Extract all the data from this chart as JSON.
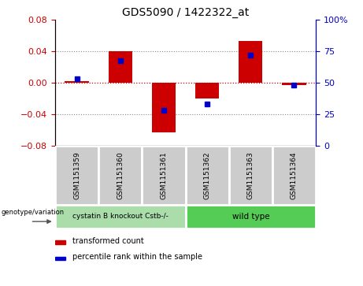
{
  "title": "GDS5090 / 1422322_at",
  "samples": [
    "GSM1151359",
    "GSM1151360",
    "GSM1151361",
    "GSM1151362",
    "GSM1151363",
    "GSM1151364"
  ],
  "red_values": [
    0.002,
    0.04,
    -0.063,
    -0.02,
    0.053,
    -0.003
  ],
  "blue_values": [
    53,
    68,
    28,
    33,
    72,
    48
  ],
  "ylim_left": [
    -0.08,
    0.08
  ],
  "ylim_right": [
    0,
    100
  ],
  "yticks_left": [
    -0.08,
    -0.04,
    0.0,
    0.04,
    0.08
  ],
  "yticks_right": [
    0,
    25,
    50,
    75,
    100
  ],
  "bar_color": "#cc0000",
  "dot_color": "#0000cc",
  "tick_color_left": "#cc0000",
  "tick_color_right": "#0000cc",
  "hline_zero_color": "#cc0000",
  "hline_grid_color": "#888888",
  "group1_label": "cystatin B knockout Cstb-/-",
  "group2_label": "wild type",
  "group1_color": "#aaddaa",
  "group2_color": "#55cc55",
  "sample_box_color": "#cccccc",
  "sample_box_edge": "#ffffff",
  "geno_label": "genotype/variation",
  "legend_red": "transformed count",
  "legend_blue": "percentile rank within the sample",
  "bar_width": 0.55
}
